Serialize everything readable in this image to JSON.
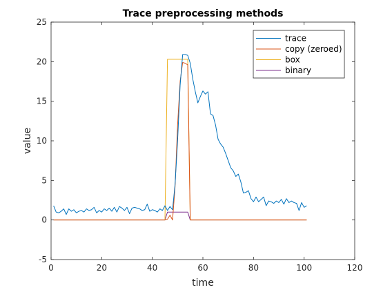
{
  "chart_data": {
    "type": "line",
    "title": "Trace preprocessing methods",
    "xlabel": "time",
    "ylabel": "value",
    "xlim": [
      0,
      120
    ],
    "ylim": [
      -5,
      25
    ],
    "xticks": [
      0,
      20,
      40,
      60,
      80,
      100,
      120
    ],
    "yticks": [
      -5,
      0,
      5,
      10,
      15,
      20,
      25
    ],
    "grid": false,
    "legend_position": "top-right",
    "series": [
      {
        "name": "trace",
        "color": "#0072BD",
        "x": [
          1,
          2,
          3,
          4,
          5,
          6,
          7,
          8,
          9,
          10,
          11,
          12,
          13,
          14,
          15,
          16,
          17,
          18,
          19,
          20,
          21,
          22,
          23,
          24,
          25,
          26,
          27,
          28,
          29,
          30,
          31,
          32,
          33,
          34,
          35,
          36,
          37,
          38,
          39,
          40,
          41,
          42,
          43,
          44,
          45,
          46,
          47,
          48,
          49,
          50,
          51,
          52,
          53,
          54,
          55,
          56,
          57,
          58,
          59,
          60,
          61,
          62,
          63,
          64,
          65,
          66,
          67,
          68,
          69,
          70,
          71,
          72,
          73,
          74,
          75,
          76,
          77,
          78,
          79,
          80,
          81,
          82,
          83,
          84,
          85,
          86,
          87,
          88,
          89,
          90,
          91,
          92,
          93,
          94,
          95,
          96,
          97,
          98,
          99,
          100,
          101
        ],
        "y": [
          1.8,
          1.0,
          0.9,
          1.1,
          1.4,
          0.7,
          1.4,
          1.1,
          1.3,
          0.9,
          1.1,
          1.2,
          1.0,
          1.4,
          1.2,
          1.3,
          1.6,
          0.9,
          1.2,
          1.0,
          1.4,
          1.2,
          1.5,
          1.1,
          1.6,
          1.0,
          1.7,
          1.5,
          1.2,
          1.6,
          0.8,
          1.5,
          1.6,
          1.5,
          1.4,
          1.2,
          1.3,
          2.0,
          1.1,
          1.3,
          1.2,
          1.0,
          1.4,
          1.2,
          1.8,
          1.2,
          1.7,
          1.3,
          4.5,
          10.0,
          17.0,
          20.9,
          20.9,
          20.8,
          19.8,
          17.8,
          16.2,
          14.8,
          15.6,
          16.3,
          15.9,
          16.2,
          13.4,
          13.2,
          12.0,
          10.2,
          9.6,
          9.2,
          8.4,
          7.5,
          6.6,
          6.2,
          5.5,
          5.8,
          4.8,
          3.4,
          3.5,
          3.7,
          2.7,
          2.3,
          2.9,
          2.3,
          2.6,
          2.9,
          1.8,
          2.4,
          2.3,
          2.1,
          2.4,
          2.2,
          2.6,
          2.0,
          2.7,
          2.2,
          2.4,
          2.2,
          2.1,
          1.2,
          2.2,
          1.6,
          1.8
        ]
      },
      {
        "name": "copy (zeroed)",
        "color": "#D95319",
        "x": [
          1,
          44,
          45,
          46,
          47,
          48,
          49,
          50,
          51,
          52,
          53,
          54,
          55,
          56,
          101
        ],
        "y": [
          0,
          0,
          0,
          0.1,
          0.6,
          0,
          4.2,
          12.0,
          17.5,
          19.9,
          19.8,
          19.6,
          0,
          0,
          0
        ]
      },
      {
        "name": "box",
        "color": "#EDB120",
        "x": [
          1,
          44,
          45,
          46,
          54,
          55,
          56,
          101
        ],
        "y": [
          0,
          0,
          0,
          20.3,
          20.3,
          0,
          0,
          0
        ]
      },
      {
        "name": "binary",
        "color": "#7E2F8E",
        "x": [
          1,
          44,
          45,
          46,
          54,
          55,
          56,
          101
        ],
        "y": [
          0,
          0,
          0,
          1,
          1,
          0,
          0,
          0
        ]
      }
    ]
  }
}
